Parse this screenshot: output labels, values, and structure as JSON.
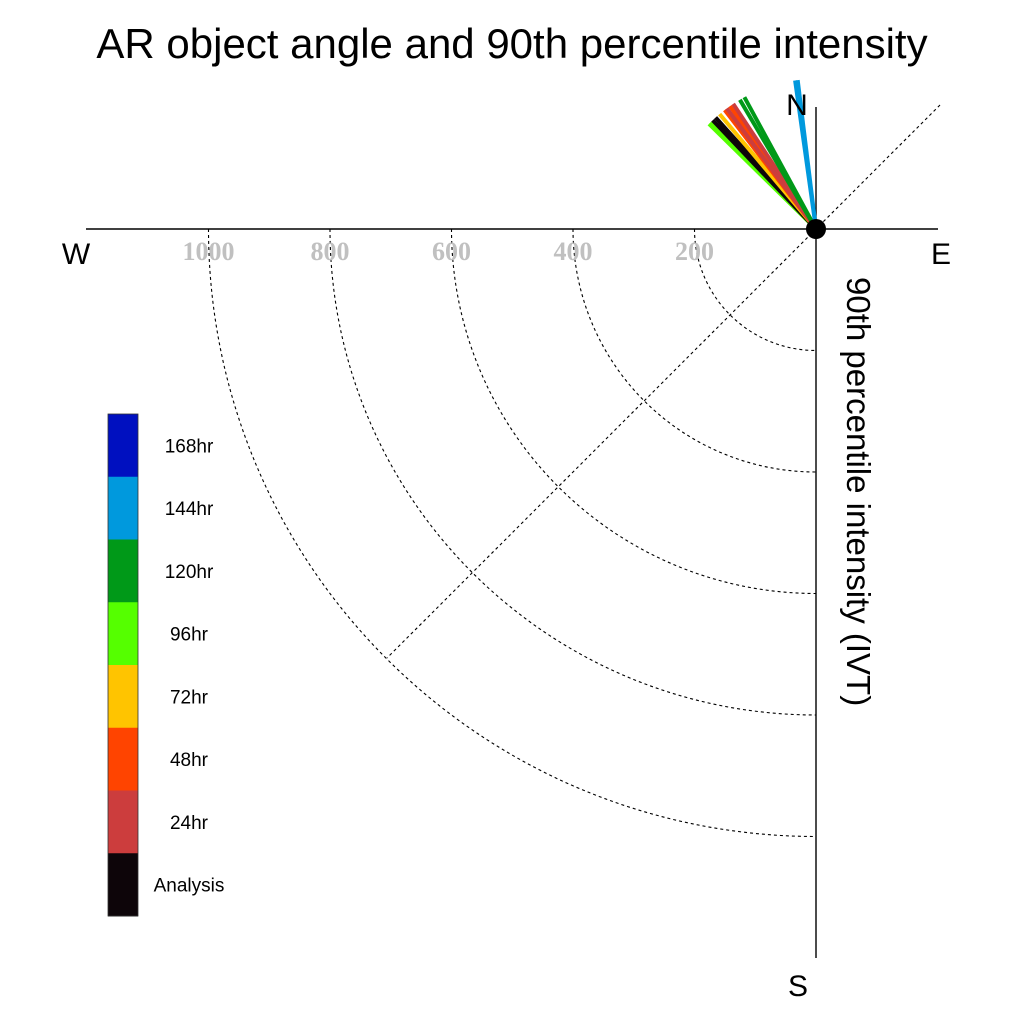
{
  "title": "AR object angle and 90th percentile intensity",
  "colors": {
    "ring": "#000000",
    "tick": "#c0c0c0",
    "axis": "#000000"
  },
  "chart_data": {
    "type": "polar-line",
    "title": "AR object angle and 90th percentile intensity",
    "ylabel": "90th percentile intensity (IVT)",
    "compass": {
      "north": "N",
      "south": "S",
      "east": "E",
      "west": "W"
    },
    "radial_ticks": [
      {
        "value": 200,
        "label": "200"
      },
      {
        "value": 400,
        "label": "400"
      },
      {
        "value": 600,
        "label": "600"
      },
      {
        "value": 800,
        "label": "800"
      },
      {
        "value": 1000,
        "label": "1000"
      }
    ],
    "rlim": [
      0,
      1200
    ],
    "grid": true,
    "legend_position": "left",
    "legend": [
      {
        "label": "168hr",
        "color": "#0010c0"
      },
      {
        "label": "144hr",
        "color": "#0099dd"
      },
      {
        "label": "120hr",
        "color": "#009918"
      },
      {
        "label": "96hr",
        "color": "#55ff00"
      },
      {
        "label": "72hr",
        "color": "#ffc400"
      },
      {
        "label": "48hr",
        "color": "#ff4400"
      },
      {
        "label": "24hr",
        "color": "#cc3d3d"
      },
      {
        "label": "Analysis",
        "color": "#0d0509"
      }
    ],
    "series": [
      {
        "name": "96hr",
        "color": "#55ff00",
        "points": [
          {
            "angle_deg": -45.5
          },
          {
            "angle_deg": -44.8
          }
        ]
      },
      {
        "name": "Analysis",
        "color": "#0d0509",
        "points": [
          {
            "angle_deg": -43.5
          },
          {
            "angle_deg": -42.0
          }
        ]
      },
      {
        "name": "72hr",
        "color": "#ffc400",
        "points": [
          {
            "angle_deg": -40.0
          }
        ]
      },
      {
        "name": "48hr",
        "color": "#ff4400",
        "points": [
          {
            "angle_deg": -37.5
          },
          {
            "angle_deg": -35.0
          }
        ]
      },
      {
        "name": "24hr",
        "color": "#cc3d3d",
        "points": [
          {
            "angle_deg": -36.5
          },
          {
            "angle_deg": -33.5
          }
        ]
      },
      {
        "name": "120hr",
        "color": "#009918",
        "points": [
          {
            "angle_deg": -30.5
          },
          {
            "angle_deg": -28.5
          }
        ]
      },
      {
        "name": "144hr",
        "color": "#0099dd",
        "points": [
          {
            "angle_deg": -8.0
          },
          {
            "angle_deg": -7.0
          }
        ]
      }
    ]
  }
}
